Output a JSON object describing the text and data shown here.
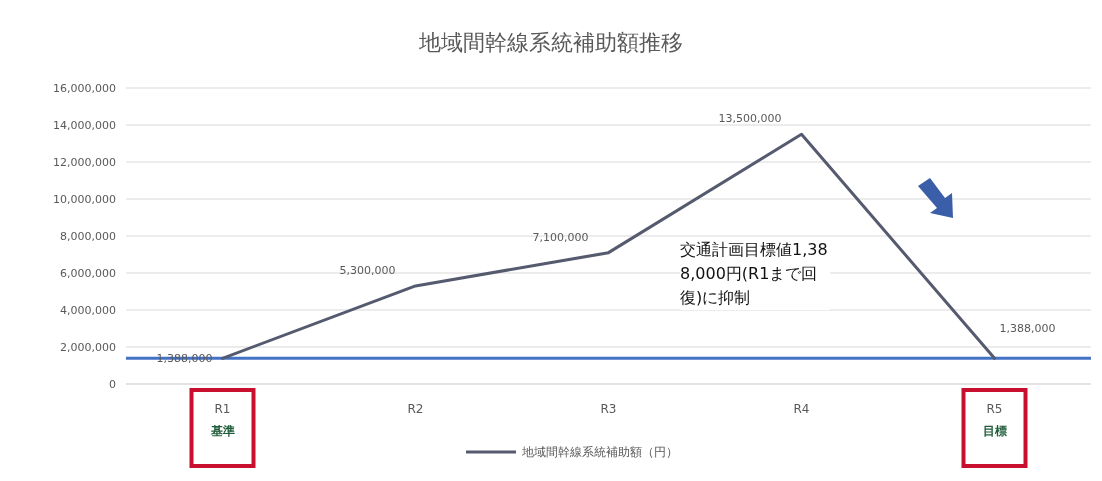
{
  "chart_data": {
    "type": "line",
    "title": "地域間幹線系統補助額推移",
    "categories": [
      "R1\n基準",
      "R2",
      "R3",
      "R4",
      "R5\n目標"
    ],
    "series": [
      {
        "name": "地域間幹線系統補助額（円）",
        "color": "#555a6e",
        "values": [
          1388000,
          5300000,
          7100000,
          13500000,
          1388000
        ],
        "value_labels": [
          "1,388,000",
          "5,300,000",
          "7,100,000",
          "13,500,000",
          "1,388,000"
        ]
      }
    ],
    "ylim": [
      0,
      16000000
    ],
    "yticks": [
      {
        "value": 0,
        "label": "0"
      },
      {
        "value": 2000000,
        "label": "2,000,000"
      },
      {
        "value": 4000000,
        "label": "4,000,000"
      },
      {
        "value": 6000000,
        "label": "6,000,000"
      },
      {
        "value": 8000000,
        "label": "8,000,000"
      },
      {
        "value": 10000000,
        "label": "10,000,000"
      },
      {
        "value": 12000000,
        "label": "12,000,000"
      },
      {
        "value": 14000000,
        "label": "14,000,000"
      },
      {
        "value": 16000000,
        "label": "16,000,000"
      }
    ],
    "ref_lines": [
      {
        "axis": "y",
        "value": 1388000,
        "color": "#4472c4",
        "line_style": "solid"
      }
    ],
    "annotations": [
      "交通計画目標値1,388,000円(R1まで回復)に抑制"
    ],
    "grid": "y",
    "legend": "bottom",
    "marker": "none",
    "line_style": "solid"
  }
}
